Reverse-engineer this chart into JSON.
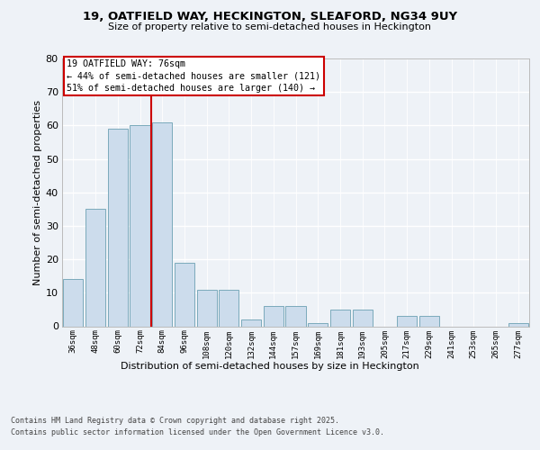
{
  "title1": "19, OATFIELD WAY, HECKINGTON, SLEAFORD, NG34 9UY",
  "title2": "Size of property relative to semi-detached houses in Heckington",
  "xlabel": "Distribution of semi-detached houses by size in Heckington",
  "ylabel": "Number of semi-detached properties",
  "bins": [
    "36sqm",
    "48sqm",
    "60sqm",
    "72sqm",
    "84sqm",
    "96sqm",
    "108sqm",
    "120sqm",
    "132sqm",
    "144sqm",
    "157sqm",
    "169sqm",
    "181sqm",
    "193sqm",
    "205sqm",
    "217sqm",
    "229sqm",
    "241sqm",
    "253sqm",
    "265sqm",
    "277sqm"
  ],
  "values": [
    14,
    35,
    59,
    60,
    61,
    19,
    11,
    11,
    2,
    6,
    6,
    1,
    5,
    5,
    0,
    3,
    3,
    0,
    0,
    0,
    1
  ],
  "bar_color": "#ccdcec",
  "bar_edge_color": "#7aaabb",
  "vline_color": "#cc0000",
  "annotation_title": "19 OATFIELD WAY: 76sqm",
  "annotation_line1": "← 44% of semi-detached houses are smaller (121)",
  "annotation_line2": "51% of semi-detached houses are larger (140) →",
  "annotation_box_color": "#cc0000",
  "ylim": [
    0,
    80
  ],
  "yticks": [
    0,
    10,
    20,
    30,
    40,
    50,
    60,
    70,
    80
  ],
  "footer1": "Contains HM Land Registry data © Crown copyright and database right 2025.",
  "footer2": "Contains public sector information licensed under the Open Government Licence v3.0.",
  "bg_color": "#eef2f7",
  "plot_bg_color": "#eef2f7",
  "grid_color": "#ffffff",
  "title1_fontsize": 9.5,
  "title2_fontsize": 8.0
}
